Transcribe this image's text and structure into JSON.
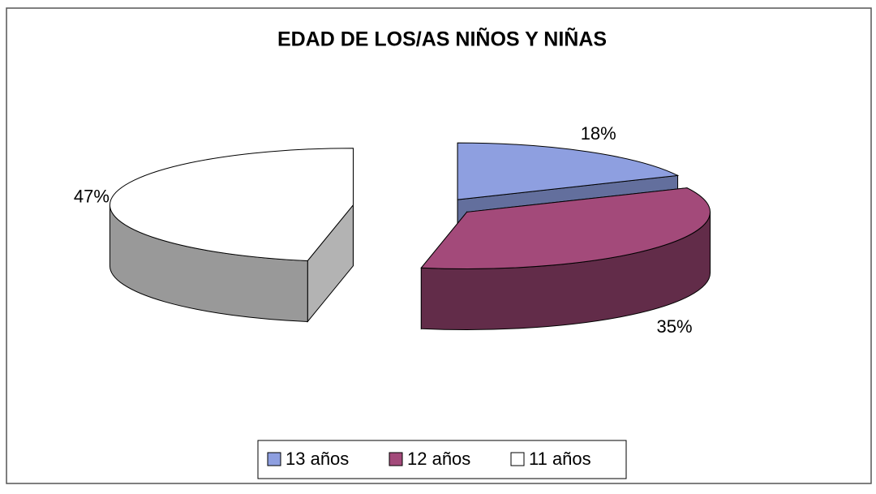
{
  "chart_data": {
    "type": "pie",
    "title": "EDAD DE LOS/AS NIÑOS Y NIÑAS",
    "categories": [
      "13 años",
      "12 años",
      "11 años"
    ],
    "values": [
      18,
      35,
      47
    ],
    "value_labels": [
      "18%",
      "35%",
      "47%"
    ],
    "colors": [
      "#8e9fe0",
      "#a34a7a",
      "#ffffff"
    ],
    "legend": "bottom"
  }
}
